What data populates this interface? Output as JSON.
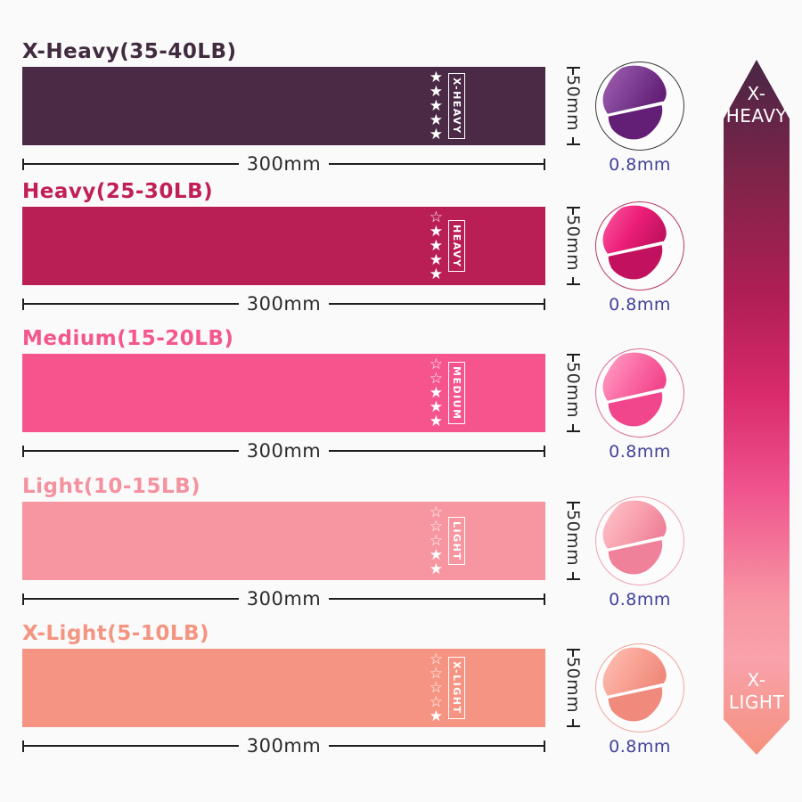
{
  "page": {
    "background": "#fbfafa"
  },
  "measurement": {
    "text_color": "#2b2b2b",
    "line_color": "#1f1f1f",
    "thickness_text_color": "#41419a"
  },
  "icons": {
    "star_filled": "★",
    "star_empty": "☆"
  },
  "bands": [
    {
      "title": "X-Heavy(35-40LB)",
      "title_color": "#412c3f",
      "band_color": "#4a2a45",
      "label": "X-HEAVY",
      "stars_filled": 5,
      "stars_empty": 0,
      "width_label": "300mm",
      "height_label": "50mm",
      "thickness_label": "0.8mm",
      "fold_light": "#a661b5",
      "fold_main": "#7c3f92",
      "fold_dark": "#631f75",
      "circle_border": "#3a3a3a"
    },
    {
      "title": "Heavy(25-30LB)",
      "title_color": "#c02057",
      "band_color": "#b91e55",
      "label": "HEAVY",
      "stars_filled": 4,
      "stars_empty": 1,
      "width_label": "300mm",
      "height_label": "50mm",
      "thickness_label": "0.8mm",
      "fold_light": "#fb5da2",
      "fold_main": "#ec1e78",
      "fold_dark": "#c2125f",
      "circle_border": "#b53b69"
    },
    {
      "title": "Medium(15-20LB)",
      "title_color": "#f4578d",
      "band_color": "#f6548d",
      "label": "MEDIUM",
      "stars_filled": 3,
      "stars_empty": 2,
      "width_label": "300mm",
      "height_label": "50mm",
      "thickness_label": "0.8mm",
      "fold_light": "#ffa6c9",
      "fold_main": "#fb6ca5",
      "fold_dark": "#f2468c",
      "circle_border": "#d96e99"
    },
    {
      "title": "Light(10-15LB)",
      "title_color": "#f492a0",
      "band_color": "#f795a0",
      "label": "LIGHT",
      "stars_filled": 2,
      "stars_empty": 3,
      "width_label": "300mm",
      "height_label": "50mm",
      "thickness_label": "0.8mm",
      "fold_light": "#fdc6cd",
      "fold_main": "#f9a3b0",
      "fold_dark": "#ef829a",
      "circle_border": "#eba4b0"
    },
    {
      "title": "X-Light(5-10LB)",
      "title_color": "#f49481",
      "band_color": "#f59482",
      "label": "X-LIGHT",
      "stars_filled": 1,
      "stars_empty": 4,
      "width_label": "300mm",
      "height_label": "50mm",
      "thickness_label": "0.8mm",
      "fold_light": "#fcc3b8",
      "fold_main": "#f9a294",
      "fold_dark": "#ef8a7c",
      "circle_border": "#eda79a"
    }
  ],
  "scale_arrow": {
    "top_line1": "X-",
    "top_line2": "HEAVY",
    "bottom_line1": "X-",
    "bottom_line2": "LIGHT",
    "gradient": [
      "#482645 0%",
      "#7c2449 16%",
      "#b01e55 34%",
      "#d92a6c 48%",
      "#f0548e 62%",
      "#f795a3 78%",
      "#f9a2ab 86%",
      "#f5917f 100%"
    ]
  }
}
